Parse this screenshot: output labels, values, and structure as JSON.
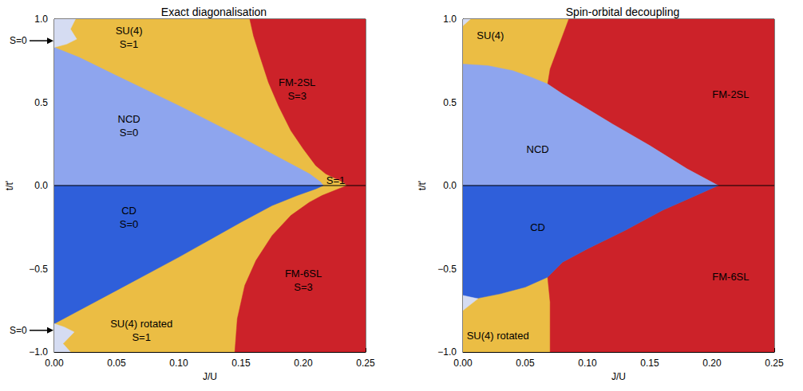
{
  "chart_data": [
    {
      "type": "region_map",
      "title": "Exact diagonalisation",
      "x_label": "J/U",
      "y_label": "t/t'",
      "xlim": [
        0,
        0.25
      ],
      "ylim": [
        -1,
        1
      ],
      "xticks": [
        {
          "value": 0,
          "label": "0.00"
        },
        0.05,
        {
          "value": 0.1,
          "label": "0.10"
        },
        0.15,
        {
          "value": 0.2,
          "label": "0.20"
        },
        0.25
      ],
      "yticks": [
        {
          "value": -1,
          "label": "−1.0"
        },
        {
          "value": -0.5,
          "label": "−0.5"
        },
        {
          "value": 0,
          "label": "0.0"
        },
        0.5,
        {
          "value": 1,
          "label": "1.0"
        }
      ],
      "hlines": [
        0
      ],
      "regions": [
        {
          "color": "#ebbd44",
          "polygon": [
            [
              0,
              -1
            ],
            [
              0.25,
              -1
            ],
            [
              0.25,
              1
            ],
            [
              0,
              1
            ]
          ]
        },
        {
          "color": "#cc2229",
          "polygon": [
            [
              0.157,
              1
            ],
            [
              0.25,
              1
            ],
            [
              0.25,
              0
            ],
            [
              0.235,
              0
            ],
            [
              0.232,
              0.02
            ],
            [
              0.225,
              0.045
            ],
            [
              0.218,
              0.07
            ],
            [
              0.21,
              0.12
            ],
            [
              0.2,
              0.22
            ],
            [
              0.19,
              0.33
            ],
            [
              0.18,
              0.48
            ],
            [
              0.172,
              0.62
            ],
            [
              0.165,
              0.78
            ],
            [
              0.16,
              0.9
            ]
          ]
        },
        {
          "color": "#cc2229",
          "polygon": [
            [
              0.145,
              -1
            ],
            [
              0.25,
              -1
            ],
            [
              0.25,
              0
            ],
            [
              0.235,
              0
            ],
            [
              0.225,
              -0.03
            ],
            [
              0.215,
              -0.06
            ],
            [
              0.205,
              -0.1
            ],
            [
              0.19,
              -0.18
            ],
            [
              0.175,
              -0.3
            ],
            [
              0.162,
              -0.45
            ],
            [
              0.153,
              -0.6
            ],
            [
              0.147,
              -0.8
            ]
          ]
        },
        {
          "color": "#8ea5ee",
          "polygon": [
            [
              0,
              0
            ],
            [
              0.216,
              0
            ],
            [
              0.214,
              0.02
            ],
            [
              0.205,
              0.07
            ],
            [
              0.19,
              0.13
            ],
            [
              0.15,
              0.29
            ],
            [
              0.1,
              0.48
            ],
            [
              0.05,
              0.66
            ],
            [
              0.02,
              0.77
            ],
            [
              0,
              0.83
            ]
          ]
        },
        {
          "color": "#2f5fda",
          "polygon": [
            [
              0,
              0
            ],
            [
              0.216,
              0
            ],
            [
              0.21,
              -0.02
            ],
            [
              0.195,
              -0.06
            ],
            [
              0.175,
              -0.12
            ],
            [
              0.15,
              -0.22
            ],
            [
              0.1,
              -0.43
            ],
            [
              0.05,
              -0.63
            ],
            [
              0.02,
              -0.75
            ],
            [
              0,
              -0.83
            ]
          ]
        },
        {
          "color": "#d5dcf2",
          "polygon": [
            [
              0,
              1
            ],
            [
              0.017,
              1
            ],
            [
              0.013,
              0.94
            ],
            [
              0.018,
              0.88
            ],
            [
              0.01,
              0.85
            ],
            [
              0,
              0.83
            ]
          ]
        },
        {
          "color": "#d5dcf2",
          "polygon": [
            [
              0,
              -1
            ],
            [
              0.013,
              -1
            ],
            [
              0.007,
              -0.95
            ],
            [
              0.016,
              -0.88
            ],
            [
              0.008,
              -0.85
            ],
            [
              0,
              -0.83
            ]
          ]
        }
      ],
      "annotations": [
        {
          "text": "SU(4)",
          "x": 0.06,
          "y": 0.93
        },
        {
          "text": "S=1",
          "x": 0.06,
          "y": 0.85
        },
        {
          "text": "FM-2SL",
          "x": 0.195,
          "y": 0.62
        },
        {
          "text": "S=3",
          "x": 0.195,
          "y": 0.54
        },
        {
          "text": "NCD",
          "x": 0.06,
          "y": 0.4
        },
        {
          "text": "S=0",
          "x": 0.06,
          "y": 0.32
        },
        {
          "text": "S=1",
          "x": 0.226,
          "y": 0.03
        },
        {
          "text": "CD",
          "x": 0.06,
          "y": -0.15
        },
        {
          "text": "S=0",
          "x": 0.06,
          "y": -0.23
        },
        {
          "text": "FM-6SL",
          "x": 0.2,
          "y": -0.53
        },
        {
          "text": "S=3",
          "x": 0.2,
          "y": -0.61
        },
        {
          "text": "SU(4) rotated",
          "x": 0.07,
          "y": -0.83
        },
        {
          "text": "S=1",
          "x": 0.07,
          "y": -0.91
        }
      ],
      "side_annotations": [
        {
          "text": "S=0",
          "y": 0.87
        },
        {
          "text": "S=0",
          "y": -0.87
        }
      ]
    },
    {
      "type": "region_map",
      "title": "Spin-orbital decoupling",
      "x_label": "J/U",
      "y_label": "t/t'",
      "xlim": [
        0,
        0.25
      ],
      "ylim": [
        -1,
        1
      ],
      "xticks": [
        {
          "value": 0,
          "label": "0.00"
        },
        0.05,
        {
          "value": 0.1,
          "label": "0.10"
        },
        0.15,
        {
          "value": 0.2,
          "label": "0.20"
        },
        0.25
      ],
      "yticks": [
        {
          "value": -1,
          "label": "−1.0"
        },
        {
          "value": -0.5,
          "label": "−0.5"
        },
        {
          "value": 0,
          "label": "0.0"
        },
        0.5,
        {
          "value": 1,
          "label": "1.0"
        }
      ],
      "hlines": [
        0
      ],
      "regions": [
        {
          "color": "#ebbd44",
          "polygon": [
            [
              0,
              -1
            ],
            [
              0.25,
              -1
            ],
            [
              0.25,
              1
            ],
            [
              0,
              1
            ]
          ]
        },
        {
          "color": "#cc2229",
          "polygon": [
            [
              0.085,
              1
            ],
            [
              0.25,
              1
            ],
            [
              0.25,
              0
            ],
            [
              0.205,
              0
            ],
            [
              0.2,
              0.02
            ],
            [
              0.18,
              0.1
            ],
            [
              0.15,
              0.24
            ],
            [
              0.12,
              0.37
            ],
            [
              0.1,
              0.46
            ],
            [
              0.08,
              0.55
            ],
            [
              0.068,
              0.61
            ],
            [
              0.07,
              0.7
            ],
            [
              0.075,
              0.8
            ],
            [
              0.08,
              0.9
            ]
          ]
        },
        {
          "color": "#cc2229",
          "polygon": [
            [
              0.07,
              -1
            ],
            [
              0.25,
              -1
            ],
            [
              0.25,
              0
            ],
            [
              0.205,
              0
            ],
            [
              0.19,
              -0.05
            ],
            [
              0.16,
              -0.15
            ],
            [
              0.13,
              -0.27
            ],
            [
              0.1,
              -0.38
            ],
            [
              0.08,
              -0.46
            ],
            [
              0.068,
              -0.55
            ],
            [
              0.07,
              -0.7
            ],
            [
              0.07,
              -0.85
            ]
          ]
        },
        {
          "color": "#8ea5ee",
          "polygon": [
            [
              0,
              0
            ],
            [
              0.205,
              0
            ],
            [
              0.2,
              0.02
            ],
            [
              0.18,
              0.1
            ],
            [
              0.15,
              0.24
            ],
            [
              0.12,
              0.37
            ],
            [
              0.1,
              0.46
            ],
            [
              0.08,
              0.55
            ],
            [
              0.068,
              0.61
            ],
            [
              0.055,
              0.65
            ],
            [
              0.04,
              0.69
            ],
            [
              0.02,
              0.72
            ],
            [
              0,
              0.73
            ]
          ]
        },
        {
          "color": "#2f5fda",
          "polygon": [
            [
              0,
              0
            ],
            [
              0.205,
              0
            ],
            [
              0.19,
              -0.05
            ],
            [
              0.16,
              -0.15
            ],
            [
              0.13,
              -0.27
            ],
            [
              0.1,
              -0.38
            ],
            [
              0.08,
              -0.46
            ],
            [
              0.068,
              -0.55
            ],
            [
              0.05,
              -0.61
            ],
            [
              0.03,
              -0.65
            ],
            [
              0.01,
              -0.68
            ],
            [
              0,
              -0.69
            ]
          ]
        },
        {
          "color": "#d5dcf2",
          "polygon": [
            [
              0,
              1
            ],
            [
              0.006,
              1
            ],
            [
              0,
              0.96
            ]
          ]
        },
        {
          "color": "#d5dcf2",
          "polygon": [
            [
              0,
              -0.66
            ],
            [
              0.012,
              -0.68
            ],
            [
              0,
              -0.75
            ]
          ]
        }
      ],
      "annotations": [
        {
          "text": "SU(4)",
          "x": 0.022,
          "y": 0.9
        },
        {
          "text": "NCD",
          "x": 0.06,
          "y": 0.22
        },
        {
          "text": "FM-2SL",
          "x": 0.215,
          "y": 0.55
        },
        {
          "text": "CD",
          "x": 0.06,
          "y": -0.25
        },
        {
          "text": "FM-6SL",
          "x": 0.215,
          "y": -0.55
        },
        {
          "text": "SU(4) rotated",
          "x": 0.028,
          "y": -0.9
        }
      ],
      "side_annotations": []
    }
  ]
}
